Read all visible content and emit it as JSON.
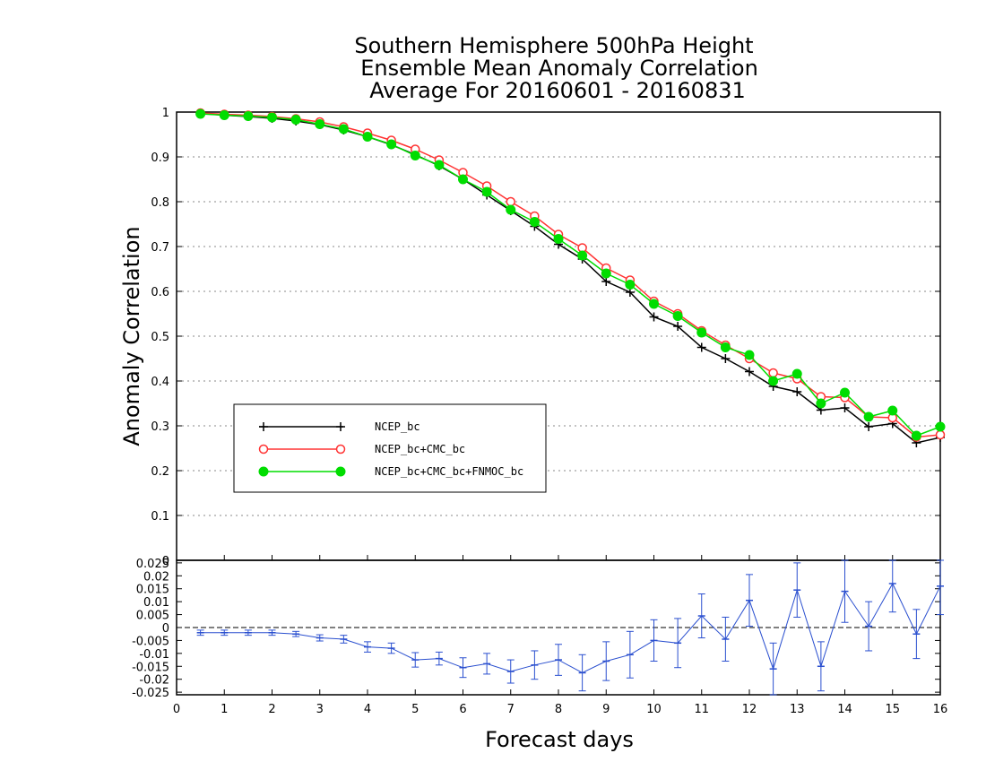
{
  "chart_data": [
    {
      "type": "line",
      "title": [
        "Southern Hemisphere 500hPa Height",
        "Ensemble Mean Anomaly Correlation",
        "Average For 20160601 - 20160831"
      ],
      "xlabel": "Forecast days",
      "ylabel": "Anomaly Correlation",
      "xlim": [
        0,
        16
      ],
      "ylim": [
        0,
        1
      ],
      "xticks": [
        "0",
        "1",
        "2",
        "3",
        "4",
        "5",
        "6",
        "7",
        "8",
        "9",
        "10",
        "11",
        "12",
        "13",
        "14",
        "15",
        "16"
      ],
      "yticks": [
        "0",
        "0.1",
        "0.2",
        "0.3",
        "0.4",
        "0.5",
        "0.6",
        "0.7",
        "0.8",
        "0.9",
        "1"
      ],
      "grid": true,
      "legend_position": "center-left",
      "x": [
        0.5,
        1,
        1.5,
        2,
        2.5,
        3,
        3.5,
        4,
        4.5,
        5,
        5.5,
        6,
        6.5,
        7,
        7.5,
        8,
        8.5,
        9,
        9.5,
        10,
        10.5,
        11,
        11.5,
        12,
        12.5,
        13,
        13.5,
        14,
        14.5,
        15,
        15.5,
        16
      ],
      "series": [
        {
          "name": "NCEP_bc",
          "color": "#000000",
          "marker": "plus",
          "values": [
            0.997,
            0.993,
            0.99,
            0.986,
            0.98,
            0.972,
            0.96,
            0.945,
            0.927,
            0.905,
            0.88,
            0.85,
            0.815,
            0.78,
            0.745,
            0.705,
            0.672,
            0.622,
            0.598,
            0.543,
            0.522,
            0.475,
            0.45,
            0.421,
            0.388,
            0.376,
            0.335,
            0.34,
            0.298,
            0.305,
            0.262,
            0.274
          ]
        },
        {
          "name": "NCEP_bc+CMC_bc",
          "color": "#ff3333",
          "marker": "open-circle",
          "values": [
            0.998,
            0.995,
            0.993,
            0.99,
            0.985,
            0.978,
            0.967,
            0.953,
            0.937,
            0.917,
            0.893,
            0.865,
            0.835,
            0.8,
            0.768,
            0.727,
            0.697,
            0.652,
            0.625,
            0.578,
            0.55,
            0.512,
            0.48,
            0.45,
            0.418,
            0.405,
            0.365,
            0.363,
            0.32,
            0.318,
            0.275,
            0.28
          ]
        },
        {
          "name": "NCEP_bc+CMC_bc+FNMOC_bc",
          "color": "#00dd00",
          "marker": "filled-circle",
          "values": [
            0.996,
            0.993,
            0.991,
            0.988,
            0.983,
            0.973,
            0.962,
            0.945,
            0.928,
            0.903,
            0.882,
            0.85,
            0.822,
            0.782,
            0.755,
            0.717,
            0.68,
            0.64,
            0.615,
            0.572,
            0.545,
            0.508,
            0.475,
            0.458,
            0.4,
            0.416,
            0.35,
            0.374,
            0.32,
            0.334,
            0.278,
            0.298
          ]
        }
      ]
    },
    {
      "type": "line",
      "xlim": [
        0,
        16
      ],
      "ylim": [
        -0.026,
        0.026
      ],
      "yticks": [
        "-0.025",
        "-0.02",
        "-0.015",
        "-0.01",
        "-0.005",
        "0",
        "0.005",
        "0.01",
        "0.015",
        "0.02",
        "0.025"
      ],
      "top_tick": "0",
      "color": "#2a4fcf",
      "x": [
        0.5,
        1,
        1.5,
        2,
        2.5,
        3,
        3.5,
        4,
        4.5,
        5,
        5.5,
        6,
        6.5,
        7,
        7.5,
        8,
        8.5,
        9,
        9.5,
        10,
        10.5,
        11,
        11.5,
        12,
        12.5,
        13,
        13.5,
        14,
        14.5,
        15,
        15.5,
        16
      ],
      "values": [
        -0.002,
        -0.002,
        -0.002,
        -0.002,
        -0.0025,
        -0.004,
        -0.0045,
        -0.0075,
        -0.008,
        -0.0125,
        -0.012,
        -0.0155,
        -0.014,
        -0.017,
        -0.0145,
        -0.0125,
        -0.0175,
        -0.013,
        -0.0105,
        -0.005,
        -0.006,
        0.0045,
        -0.0045,
        0.0105,
        -0.016,
        0.0145,
        -0.015,
        0.014,
        0.0005,
        0.017,
        -0.0025,
        0.016
      ],
      "err": [
        0.001,
        0.001,
        0.001,
        0.001,
        0.001,
        0.0012,
        0.0015,
        0.002,
        0.002,
        0.0028,
        0.0025,
        0.0038,
        0.004,
        0.0045,
        0.0055,
        0.006,
        0.007,
        0.0075,
        0.009,
        0.008,
        0.0095,
        0.0085,
        0.0085,
        0.01,
        0.01,
        0.0105,
        0.0095,
        0.012,
        0.0095,
        0.011,
        0.0095,
        0.011
      ]
    }
  ]
}
